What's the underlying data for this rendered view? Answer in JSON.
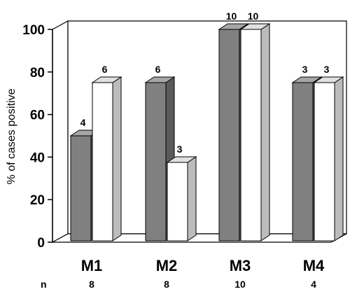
{
  "chart_data": {
    "type": "bar",
    "style": "3d-clustered",
    "categories": [
      "M1",
      "M2",
      "M3",
      "M4"
    ],
    "series": [
      {
        "values": [
          50,
          75,
          100,
          75
        ],
        "data_labels": [
          "4",
          "6",
          "10",
          "3"
        ],
        "color": "#808080"
      },
      {
        "values": [
          75,
          37.5,
          100,
          75
        ],
        "data_labels": [
          "6",
          "3",
          "10",
          "3"
        ],
        "color": "#ffffff"
      }
    ],
    "ylabel": "% of cases positive",
    "xlabel": "",
    "ylim": [
      0,
      100
    ],
    "yticks": [
      "0",
      "20",
      "40",
      "60",
      "80",
      "100"
    ],
    "n_row": {
      "label": "n",
      "values": [
        "8",
        "8",
        "10",
        "4"
      ]
    },
    "grid": false,
    "legend": "none"
  }
}
